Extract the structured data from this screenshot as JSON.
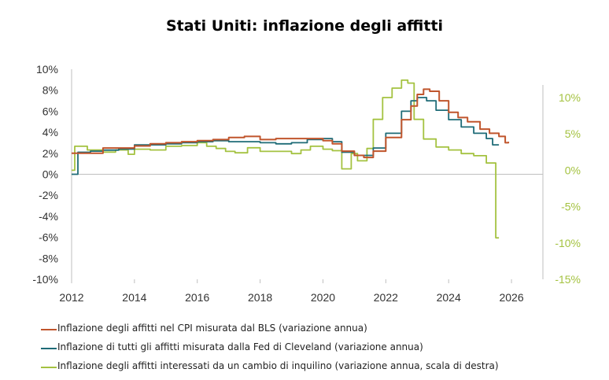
{
  "chart_data": {
    "type": "line",
    "title": "Stati Uniti: inflazione degli affitti",
    "xlabel": "",
    "ylabel": "",
    "x_ticks": [
      "2012",
      "2014",
      "2016",
      "2018",
      "2020",
      "2022",
      "2024",
      "2026"
    ],
    "xlim": [
      2012,
      2027
    ],
    "y_left": {
      "ticks": [
        "10%",
        "8%",
        "6%",
        "4%",
        "2%",
        "0%",
        "-2%",
        "-4%",
        "-6%",
        "-8%",
        "-10%"
      ],
      "ylim": [
        -10,
        10
      ]
    },
    "y_right": {
      "ticks": [
        "10%",
        "5%",
        "0%",
        "-5%",
        "-10%",
        "-15%"
      ],
      "ylim": [
        -15,
        13.9
      ]
    },
    "grid": false,
    "legend_position": "bottom",
    "series": [
      {
        "name": "Inflazione degli affitti nel CPI misurata dal BLS (variazione annua)",
        "axis": "left",
        "color": "#c0552c",
        "points": [
          [
            2012.0,
            2.0
          ],
          [
            2013.0,
            2.5
          ],
          [
            2013.5,
            2.5
          ],
          [
            2014.0,
            2.7
          ],
          [
            2014.5,
            2.9
          ],
          [
            2015.0,
            3.0
          ],
          [
            2015.5,
            3.1
          ],
          [
            2016.0,
            3.2
          ],
          [
            2016.5,
            3.3
          ],
          [
            2017.0,
            3.5
          ],
          [
            2017.5,
            3.6
          ],
          [
            2018.0,
            3.3
          ],
          [
            2018.5,
            3.4
          ],
          [
            2019.0,
            3.4
          ],
          [
            2019.5,
            3.4
          ],
          [
            2020.0,
            3.2
          ],
          [
            2020.3,
            2.9
          ],
          [
            2020.6,
            2.2
          ],
          [
            2021.0,
            1.8
          ],
          [
            2021.3,
            1.6
          ],
          [
            2021.6,
            2.2
          ],
          [
            2022.0,
            3.5
          ],
          [
            2022.5,
            5.2
          ],
          [
            2022.8,
            6.5
          ],
          [
            2023.0,
            7.6
          ],
          [
            2023.2,
            8.1
          ],
          [
            2023.4,
            7.9
          ],
          [
            2023.7,
            7.0
          ],
          [
            2024.0,
            5.9
          ],
          [
            2024.3,
            5.4
          ],
          [
            2024.6,
            5.0
          ],
          [
            2025.0,
            4.3
          ],
          [
            2025.3,
            3.9
          ],
          [
            2025.6,
            3.6
          ],
          [
            2025.8,
            3.0
          ],
          [
            2025.9,
            3.1
          ]
        ]
      },
      {
        "name": "Inflazione di tutti gli affitti misurata dalla Fed di Cleveland (variazione annua)",
        "axis": "left",
        "color": "#1e6b77",
        "points": [
          [
            2012.0,
            0.0
          ],
          [
            2012.2,
            2.1
          ],
          [
            2012.6,
            2.2
          ],
          [
            2013.0,
            2.3
          ],
          [
            2013.5,
            2.4
          ],
          [
            2014.0,
            2.8
          ],
          [
            2014.5,
            2.8
          ],
          [
            2015.0,
            2.9
          ],
          [
            2015.5,
            3.0
          ],
          [
            2016.0,
            3.1
          ],
          [
            2016.5,
            3.2
          ],
          [
            2017.0,
            3.1
          ],
          [
            2017.5,
            3.1
          ],
          [
            2018.0,
            3.0
          ],
          [
            2018.5,
            2.9
          ],
          [
            2019.0,
            3.0
          ],
          [
            2019.5,
            3.3
          ],
          [
            2020.0,
            3.4
          ],
          [
            2020.3,
            3.1
          ],
          [
            2020.6,
            2.1
          ],
          [
            2021.0,
            1.8
          ],
          [
            2021.3,
            1.8
          ],
          [
            2021.6,
            2.5
          ],
          [
            2022.0,
            3.9
          ],
          [
            2022.5,
            6.0
          ],
          [
            2022.8,
            7.0
          ],
          [
            2023.0,
            7.3
          ],
          [
            2023.3,
            7.0
          ],
          [
            2023.6,
            6.1
          ],
          [
            2024.0,
            5.2
          ],
          [
            2024.4,
            4.5
          ],
          [
            2024.8,
            3.9
          ],
          [
            2025.2,
            3.4
          ],
          [
            2025.4,
            2.8
          ],
          [
            2025.6,
            2.8
          ]
        ]
      },
      {
        "name": "Inflazione degli affitti interessati da un cambio di inquilino (variazione annua, scala di destra)",
        "axis": "right",
        "color": "#a4c240",
        "points": [
          [
            2012.0,
            0.0
          ],
          [
            2012.1,
            3.3
          ],
          [
            2012.5,
            2.8
          ],
          [
            2013.0,
            2.5
          ],
          [
            2013.4,
            2.8
          ],
          [
            2013.8,
            2.2
          ],
          [
            2014.0,
            2.9
          ],
          [
            2014.5,
            2.8
          ],
          [
            2015.0,
            3.3
          ],
          [
            2015.5,
            3.4
          ],
          [
            2016.0,
            3.8
          ],
          [
            2016.3,
            3.3
          ],
          [
            2016.6,
            3.0
          ],
          [
            2016.9,
            2.6
          ],
          [
            2017.2,
            2.4
          ],
          [
            2017.6,
            3.1
          ],
          [
            2018.0,
            2.6
          ],
          [
            2018.5,
            2.6
          ],
          [
            2019.0,
            2.3
          ],
          [
            2019.3,
            2.8
          ],
          [
            2019.6,
            3.3
          ],
          [
            2020.0,
            2.9
          ],
          [
            2020.3,
            2.7
          ],
          [
            2020.6,
            0.2
          ],
          [
            2020.9,
            2.3
          ],
          [
            2021.1,
            1.3
          ],
          [
            2021.4,
            3.0
          ],
          [
            2021.6,
            7.0
          ],
          [
            2021.9,
            10.0
          ],
          [
            2022.2,
            11.3
          ],
          [
            2022.5,
            12.4
          ],
          [
            2022.7,
            12.0
          ],
          [
            2022.9,
            7.0
          ],
          [
            2023.2,
            4.3
          ],
          [
            2023.6,
            3.2
          ],
          [
            2024.0,
            2.8
          ],
          [
            2024.4,
            2.3
          ],
          [
            2024.8,
            2.0
          ],
          [
            2025.2,
            1.0
          ],
          [
            2025.4,
            1.0
          ],
          [
            2025.5,
            -9.3
          ],
          [
            2025.6,
            -9.3
          ]
        ]
      }
    ]
  }
}
